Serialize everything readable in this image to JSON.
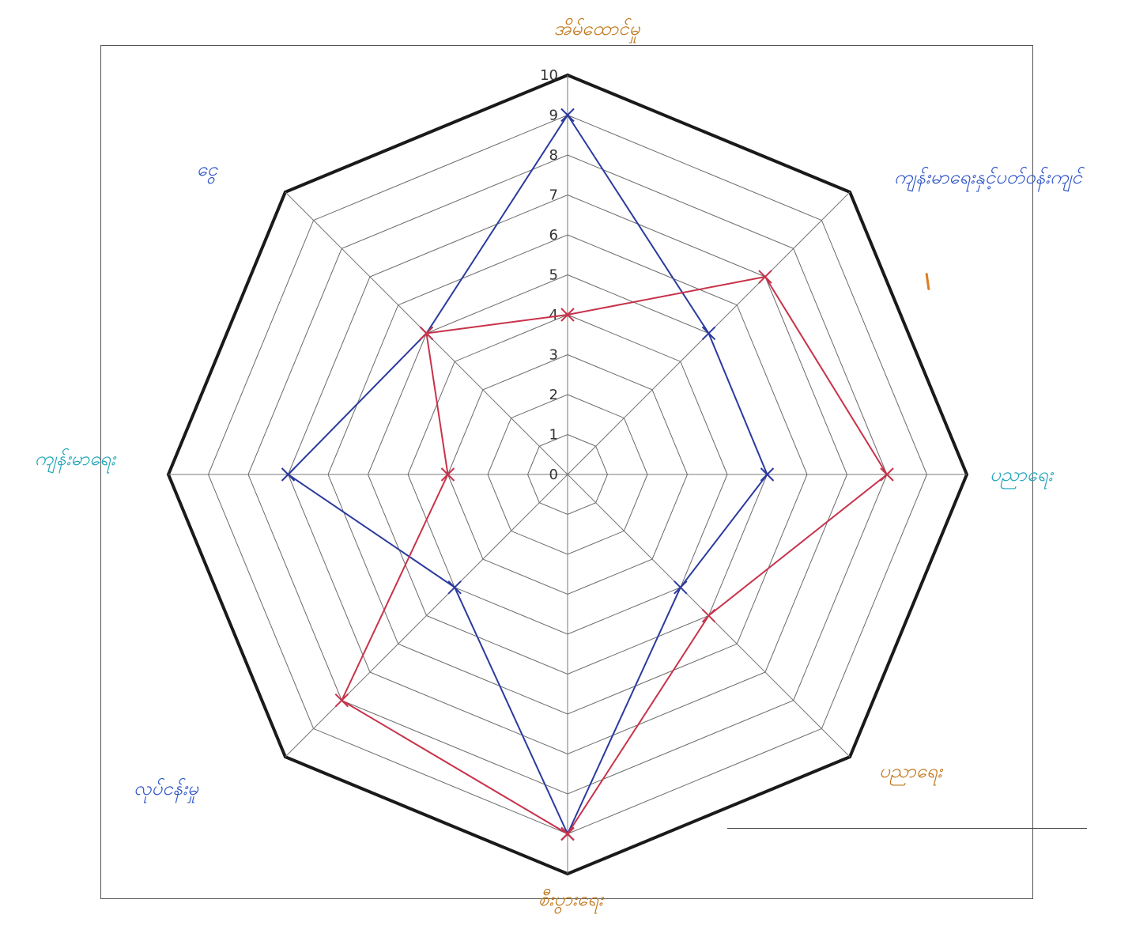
{
  "chart_data": {
    "type": "radar",
    "title": "",
    "axes": [
      "အိမ်ထောင်မှု",
      "ကျန်းမာရေးနှင့်ပတ်ဝန်းကျင်",
      "ပညာရေး",
      "ပညာရေး",
      "စီးပွားရေး",
      "လုပ်ငန်းမှု",
      "ကျန်းမာရေး",
      "ငွေ"
    ],
    "axis_colors": [
      "#c0761a",
      "#2f55c9",
      "#1fa5b8",
      "#c0761a",
      "#c0761a",
      "#2f55c9",
      "#1fa5b8",
      "#2f55c9"
    ],
    "scale": {
      "min": 0,
      "max": 10,
      "step": 1
    },
    "tick_labels": [
      "0",
      "1",
      "2",
      "3",
      "4",
      "5",
      "6",
      "7",
      "8",
      "9",
      "10"
    ],
    "series": [
      {
        "color": "#2b3a9e",
        "values": [
          9,
          5,
          5,
          4,
          9,
          4,
          7,
          5
        ]
      },
      {
        "color": "#c8324a",
        "values": [
          4,
          7,
          8,
          5,
          9,
          8,
          3,
          5
        ]
      }
    ],
    "grid": true,
    "legend": "none"
  }
}
